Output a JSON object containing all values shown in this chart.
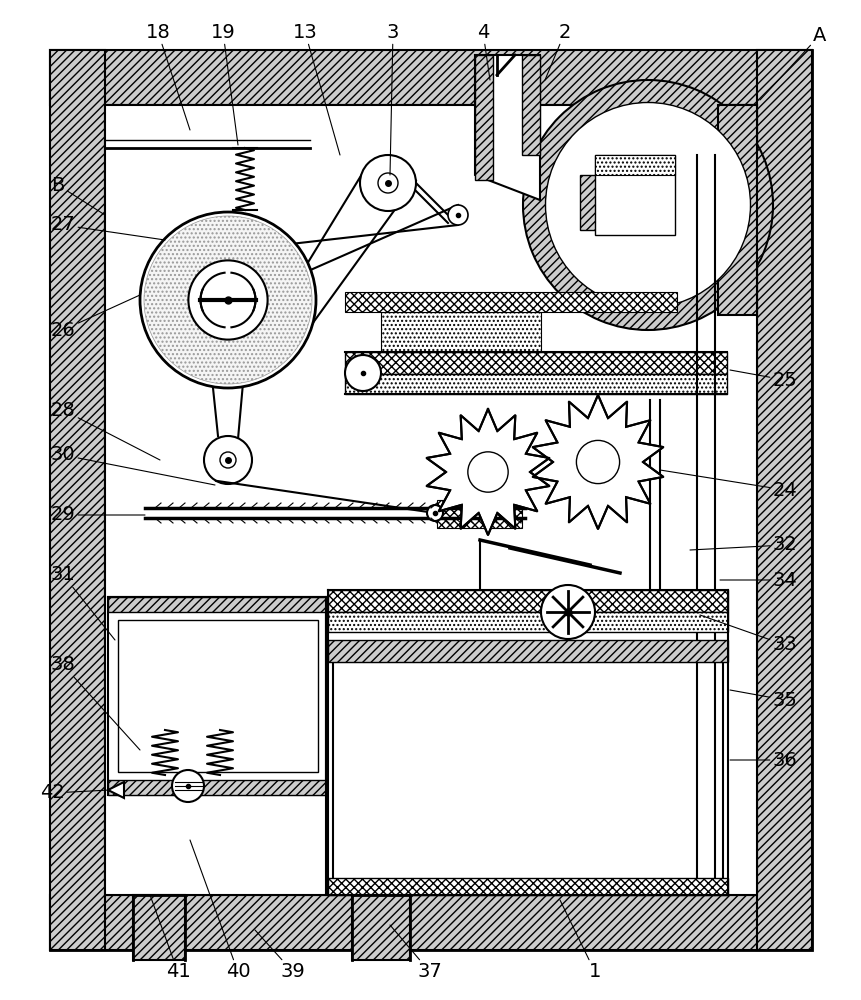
{
  "bg_color": "#ffffff",
  "wall_color": "#000000",
  "hatch_color": "#000000",
  "line_color": "#000000",
  "labels_config": {
    "A": [
      820,
      35,
      760,
      100
    ],
    "B": [
      58,
      185,
      105,
      215
    ],
    "1": [
      595,
      972,
      560,
      900
    ],
    "2": [
      565,
      32,
      545,
      80
    ],
    "3": [
      393,
      32,
      390,
      175
    ],
    "4": [
      483,
      32,
      490,
      80
    ],
    "13": [
      305,
      32,
      340,
      155
    ],
    "18": [
      158,
      32,
      190,
      130
    ],
    "19": [
      223,
      32,
      238,
      145
    ],
    "24": [
      785,
      490,
      660,
      470
    ],
    "25": [
      785,
      380,
      730,
      370
    ],
    "26": [
      63,
      330,
      140,
      295
    ],
    "27": [
      63,
      225,
      165,
      240
    ],
    "28": [
      63,
      410,
      160,
      460
    ],
    "29": [
      63,
      515,
      145,
      515
    ],
    "30": [
      63,
      455,
      215,
      485
    ],
    "31": [
      63,
      575,
      115,
      640
    ],
    "32": [
      785,
      545,
      690,
      550
    ],
    "33": [
      785,
      645,
      700,
      615
    ],
    "34": [
      785,
      580,
      720,
      580
    ],
    "35": [
      785,
      700,
      730,
      690
    ],
    "36": [
      785,
      760,
      730,
      760
    ],
    "37": [
      430,
      972,
      390,
      925
    ],
    "38": [
      63,
      665,
      140,
      750
    ],
    "39": [
      293,
      972,
      255,
      930
    ],
    "40": [
      238,
      972,
      190,
      840
    ],
    "41": [
      178,
      972,
      150,
      895
    ],
    "42": [
      52,
      793,
      110,
      790
    ]
  }
}
